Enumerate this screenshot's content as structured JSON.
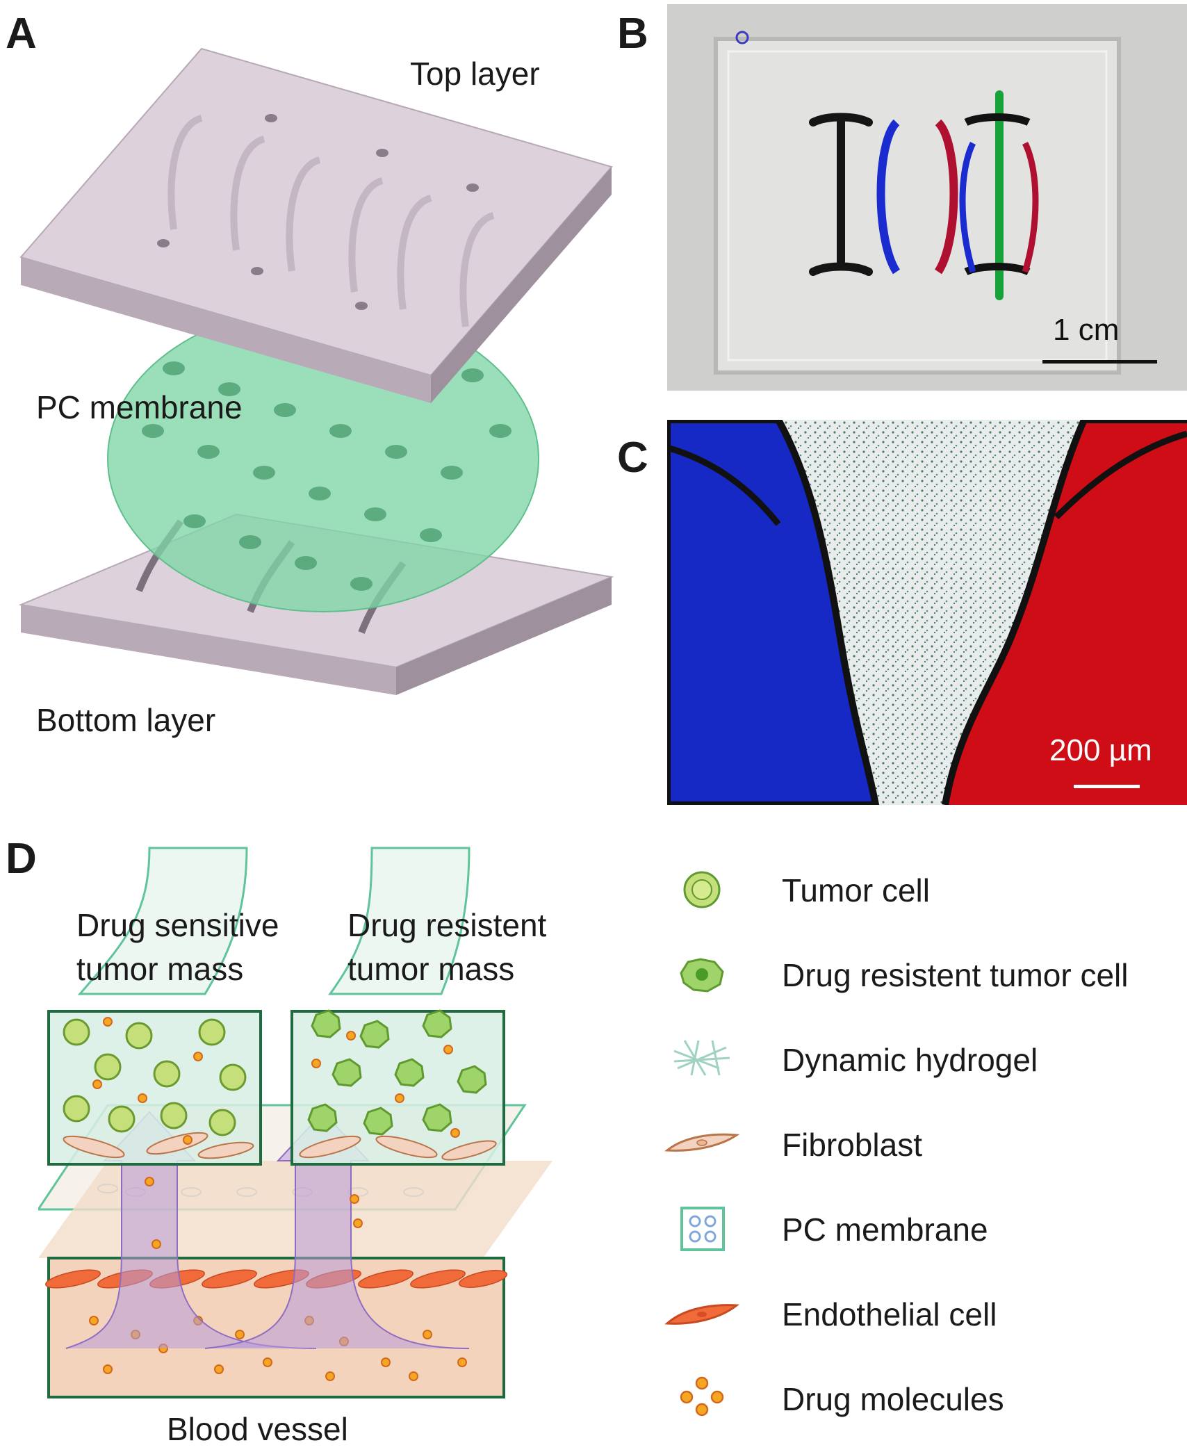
{
  "panels": {
    "a": {
      "letter": "A",
      "top_layer": "Top layer",
      "pc_membrane": "PC membrane",
      "bottom_layer": "Bottom layer"
    },
    "b": {
      "letter": "B",
      "scale": "1 cm"
    },
    "c": {
      "letter": "C",
      "scale": "200 µm"
    },
    "d": {
      "letter": "D",
      "sensitive_label": [
        "Drug sensitive",
        "tumor mass"
      ],
      "resistant_label": [
        "Drug resistent",
        "tumor mass"
      ],
      "blood_vessel": "Blood vessel"
    }
  },
  "legend": {
    "items": [
      {
        "icon": "tumor-cell-icon",
        "label": "Tumor cell"
      },
      {
        "icon": "drug-resistant-tumor-cell-icon",
        "label": "Drug resistent tumor cell"
      },
      {
        "icon": "dynamic-hydrogel-icon",
        "label": "Dynamic hydrogel"
      },
      {
        "icon": "fibroblast-icon",
        "label": "Fibroblast"
      },
      {
        "icon": "pc-membrane-icon",
        "label": "PC membrane"
      },
      {
        "icon": "endothelial-cell-icon",
        "label": "Endothelial cell"
      },
      {
        "icon": "drug-molecules-icon",
        "label": "Drug molecules"
      }
    ]
  },
  "colors": {
    "chip_gray": "#d8ccd6",
    "membrane_green": "#7fd6a6",
    "tissue_green": "#2e7d4f",
    "endothelial": "#f06a3a",
    "drug": "#f5a623",
    "blue_dye": "#1a2bd0",
    "red_dye": "#d01020"
  }
}
